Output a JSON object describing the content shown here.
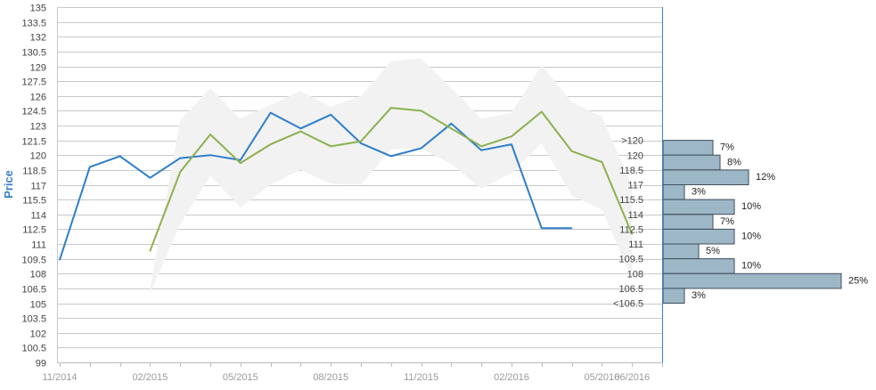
{
  "chart_data": [
    {
      "type": "line",
      "title": "",
      "xlabel": "",
      "ylabel": "Price",
      "ylim": [
        99,
        135
      ],
      "grid": true,
      "y_ticks": [
        "99",
        "100.5",
        "102",
        "103.5",
        "105",
        "106.5",
        "108",
        "109.5",
        "111",
        "112.5",
        "114",
        "115.5",
        "117",
        "118.5",
        "120",
        "121.5",
        "123",
        "124.5",
        "126",
        "127.5",
        "129",
        "130.5",
        "132",
        "133.5",
        "135"
      ],
      "x_tick_labels": [
        "11/2014",
        "02/2015",
        "05/2015",
        "08/2015",
        "11/2015",
        "02/2016",
        "05/2016",
        "06/2016"
      ],
      "x_tick_dates": [
        "2014-11",
        "2015-02",
        "2015-05",
        "2015-08",
        "2015-11",
        "2016-02",
        "2016-05",
        "2016-06"
      ],
      "series": [
        {
          "name": "",
          "color": "#2f7ecb",
          "points": [
            [
              "2014-11",
              109.4
            ],
            [
              "2014-12",
              118.8
            ],
            [
              "2015-01",
              119.9
            ],
            [
              "2015-02",
              117.7
            ],
            [
              "2015-03",
              119.7
            ],
            [
              "2015-04",
              120.0
            ],
            [
              "2015-05",
              119.5
            ],
            [
              "2015-06",
              124.3
            ],
            [
              "2015-07",
              122.7
            ],
            [
              "2015-08",
              124.1
            ],
            [
              "2015-09",
              121.2
            ],
            [
              "2015-10",
              119.9
            ],
            [
              "2015-11",
              120.7
            ],
            [
              "2015-12",
              123.2
            ],
            [
              "2016-01",
              120.5
            ],
            [
              "2016-02",
              121.1
            ],
            [
              "2016-03",
              112.6
            ],
            [
              "2016-04",
              112.6
            ]
          ]
        },
        {
          "name": "",
          "color": "#8db04f",
          "points": [
            [
              "2015-02",
              110.3
            ],
            [
              "2015-03",
              118.3
            ],
            [
              "2015-04",
              122.1
            ],
            [
              "2015-05",
              119.2
            ],
            [
              "2015-06",
              121.1
            ],
            [
              "2015-07",
              122.4
            ],
            [
              "2015-08",
              120.9
            ],
            [
              "2015-09",
              121.4
            ],
            [
              "2015-10",
              124.8
            ],
            [
              "2015-11",
              124.5
            ],
            [
              "2015-12",
              122.7
            ],
            [
              "2016-01",
              120.9
            ],
            [
              "2016-02",
              121.9
            ],
            [
              "2016-03",
              124.4
            ],
            [
              "2016-04",
              120.4
            ],
            [
              "2016-05",
              119.3
            ],
            [
              "2016-06",
              112.0
            ]
          ]
        }
      ],
      "range_band": {
        "color": "#f2f2f2",
        "upper": [
          [
            "2015-02",
            106.5
          ],
          [
            "2015-03",
            123.5
          ],
          [
            "2015-04",
            126.8
          ],
          [
            "2015-05",
            123.7
          ],
          [
            "2015-06",
            125.1
          ],
          [
            "2015-07",
            126.5
          ],
          [
            "2015-08",
            124.9
          ],
          [
            "2015-09",
            126.0
          ],
          [
            "2015-10",
            129.5
          ],
          [
            "2015-11",
            129.8
          ],
          [
            "2015-12",
            126.8
          ],
          [
            "2016-01",
            123.7
          ],
          [
            "2016-02",
            124.3
          ],
          [
            "2016-03",
            129.1
          ],
          [
            "2016-04",
            125.4
          ],
          [
            "2016-05",
            123.9
          ],
          [
            "2016-06",
            116.9
          ]
        ],
        "lower": [
          [
            "2015-02",
            106.0
          ],
          [
            "2015-03",
            113.0
          ],
          [
            "2015-04",
            117.9
          ],
          [
            "2015-05",
            114.7
          ],
          [
            "2015-06",
            117.0
          ],
          [
            "2015-07",
            118.5
          ],
          [
            "2015-08",
            117.1
          ],
          [
            "2015-09",
            117.0
          ],
          [
            "2015-10",
            120.6
          ],
          [
            "2015-11",
            120.7
          ],
          [
            "2015-12",
            119.1
          ],
          [
            "2016-01",
            116.6
          ],
          [
            "2016-02",
            118.2
          ],
          [
            "2016-03",
            121.2
          ],
          [
            "2016-04",
            115.9
          ],
          [
            "2016-05",
            114.5
          ],
          [
            "2016-06",
            107.5
          ]
        ]
      }
    },
    {
      "type": "bar",
      "orientation": "horizontal",
      "bar_color": "#9db7c7",
      "categories": [
        ">120",
        "120",
        "118.5",
        "117",
        "115.5",
        "114",
        "112.5",
        "111",
        "109.5",
        "108",
        "106.5",
        "<106.5"
      ],
      "values": [
        7,
        8,
        12,
        3,
        10,
        7,
        10,
        5,
        10,
        25,
        3,
        0
      ],
      "value_labels": [
        "7%",
        "8%",
        "12%",
        "3%",
        "10%",
        "7%",
        "10%",
        "5%",
        "10%",
        "25%",
        "3%",
        ""
      ],
      "bins": [
        [
          121.5,
          120
        ],
        [
          120,
          118.5
        ],
        [
          118.5,
          117
        ],
        [
          117,
          115.5
        ],
        [
          115.5,
          114
        ],
        [
          114,
          112.5
        ],
        [
          112.5,
          111
        ],
        [
          111,
          109.5
        ],
        [
          109.5,
          108
        ],
        [
          108,
          106.5
        ],
        [
          106.5,
          105
        ],
        [
          105,
          105
        ]
      ]
    }
  ]
}
